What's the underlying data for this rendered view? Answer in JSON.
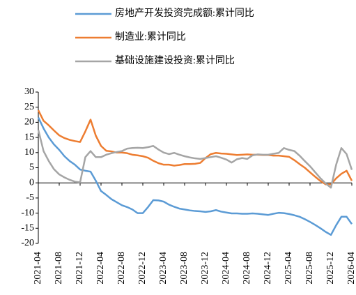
{
  "chart_data": {
    "type": "line",
    "categories": [
      "2021-04",
      null,
      null,
      null,
      "2021-08",
      null,
      null,
      null,
      "2021-12",
      null,
      null,
      null,
      "2022-04",
      null,
      null,
      null,
      "2022-08",
      null,
      null,
      null,
      "2022-12",
      null,
      null,
      null,
      "2023-04",
      null,
      null,
      null,
      "2023-08",
      null,
      null,
      null,
      "2023-12",
      null,
      null,
      null,
      "2024-04",
      null,
      null,
      null,
      "2024-08",
      null,
      null,
      null,
      "2024-12",
      null,
      null,
      null,
      "2025-04",
      null,
      null,
      null,
      "2025-08",
      null,
      null,
      null,
      "2025-12",
      null,
      null,
      null,
      "2026-04"
    ],
    "series": [
      {
        "name": "房地产开发投资完成额:累计同比",
        "color": "#5b9bd5",
        "values": [
          21.6,
          18,
          15,
          12.7,
          10.9,
          8.8,
          7.2,
          6,
          4.4,
          4,
          3.7,
          0.7,
          -2.7,
          -4,
          -5.4,
          -6.4,
          -7.4,
          -8,
          -8.8,
          -10,
          -10,
          -8,
          -5.7,
          -5.8,
          -6.2,
          -7.2,
          -7.9,
          -8.5,
          -8.8,
          -9.1,
          -9.3,
          -9.4,
          -9.6,
          -9.4,
          -9,
          -9.5,
          -9.8,
          -10.1,
          -10.1,
          -10.2,
          -10.2,
          -10.1,
          -10.2,
          -10.4,
          -10.6,
          -10.2,
          -9.9,
          -10,
          -10.3,
          -10.7,
          -11.2,
          -12,
          -12.9,
          -13.9,
          -15,
          -16.2,
          -17.2,
          -14,
          -11.2,
          -11.2,
          -13.6
        ]
      },
      {
        "name": "制造业:累计同比",
        "color": "#ed7d31",
        "values": [
          24,
          20.5,
          19,
          17.3,
          15.7,
          14.8,
          14.2,
          13.8,
          13.5,
          17,
          20.9,
          15.6,
          12.2,
          10.6,
          10.4,
          10,
          10,
          9.8,
          9.3,
          9.1,
          8.8,
          8.3,
          7.3,
          6.5,
          6,
          6,
          5.7,
          5.9,
          6.2,
          6.2,
          6.3,
          6.6,
          8.2,
          9.5,
          9.9,
          9.7,
          9.6,
          9.4,
          9.2,
          9.3,
          9.4,
          9.3,
          9.3,
          9.2,
          9.2,
          9,
          9,
          8.8,
          8.6,
          7.5,
          6.2,
          5,
          3.5,
          2,
          0.6,
          -0.5,
          -0.5,
          1.5,
          3,
          4,
          0.7
        ]
      },
      {
        "name": "基础设施建设投资:累计同比",
        "color": "#a5a5a5",
        "values": [
          17.5,
          10.5,
          7.2,
          4.5,
          2.8,
          1.8,
          1,
          0.4,
          0.2,
          8.5,
          10.5,
          8.5,
          8.5,
          9.3,
          9.8,
          10.2,
          10.5,
          11.3,
          11.5,
          11.6,
          11.5,
          11.8,
          12.2,
          11,
          10,
          9.5,
          9.9,
          9.3,
          8.8,
          8.4,
          8.1,
          7.9,
          8.2,
          8.5,
          8.8,
          8.3,
          7.7,
          6.7,
          7.8,
          8.2,
          7.9,
          9.1,
          9.4,
          9.3,
          9.3,
          9.6,
          9.9,
          11.5,
          10.9,
          10.5,
          9,
          7.2,
          5.5,
          3.5,
          1.5,
          -0.2,
          -1.6,
          6,
          11.5,
          9.5,
          4.3
        ]
      }
    ],
    "ylim": [
      -20,
      30
    ],
    "yticks": [
      -20,
      -15,
      -10,
      -5,
      0,
      5,
      10,
      15,
      20,
      25,
      30
    ]
  }
}
